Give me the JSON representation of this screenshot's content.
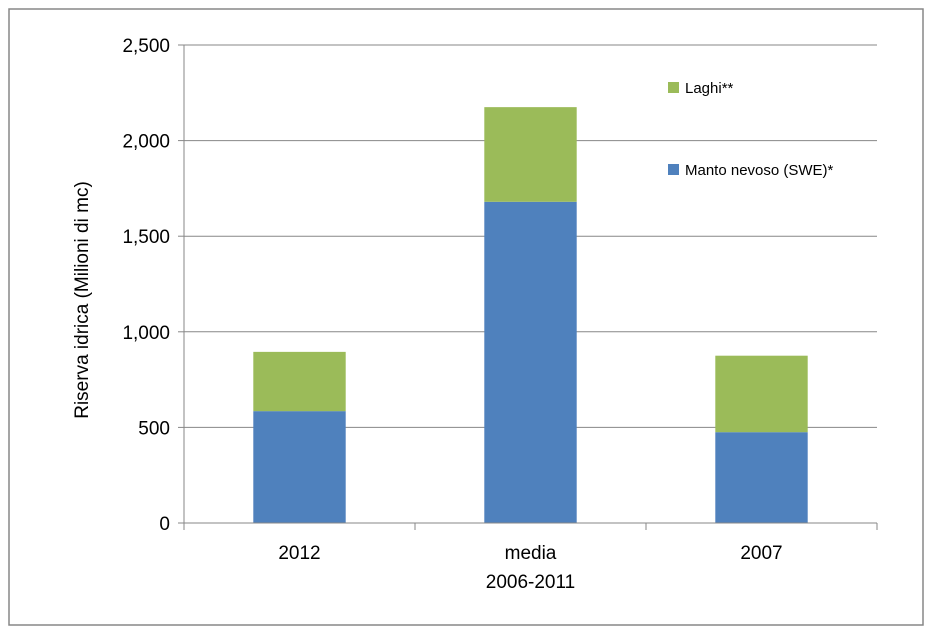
{
  "chart_data": {
    "type": "bar",
    "stacked": true,
    "categories": [
      [
        "2012"
      ],
      [
        "media",
        "2006-2011"
      ],
      [
        "2007"
      ]
    ],
    "series": [
      {
        "name": "Manto nevoso (SWE)*",
        "color": "#4f81bd",
        "values": [
          585,
          1680,
          475
        ]
      },
      {
        "name": "Laghi**",
        "color": "#9bbb59",
        "values": [
          310,
          495,
          400
        ]
      }
    ],
    "title": "",
    "xlabel": "",
    "ylabel": "Riserva idrica  (Milioni di mc)",
    "ylim": [
      0,
      2500
    ],
    "yticks": [
      0,
      500,
      1000,
      1500,
      2000,
      2500
    ],
    "ytick_labels": [
      "0",
      "500",
      "1,000",
      "1,500",
      "2,000",
      "2,500"
    ],
    "grid": true,
    "legend_position": "top-right",
    "legend_order": [
      "Laghi**",
      "Manto nevoso (SWE)*"
    ]
  }
}
